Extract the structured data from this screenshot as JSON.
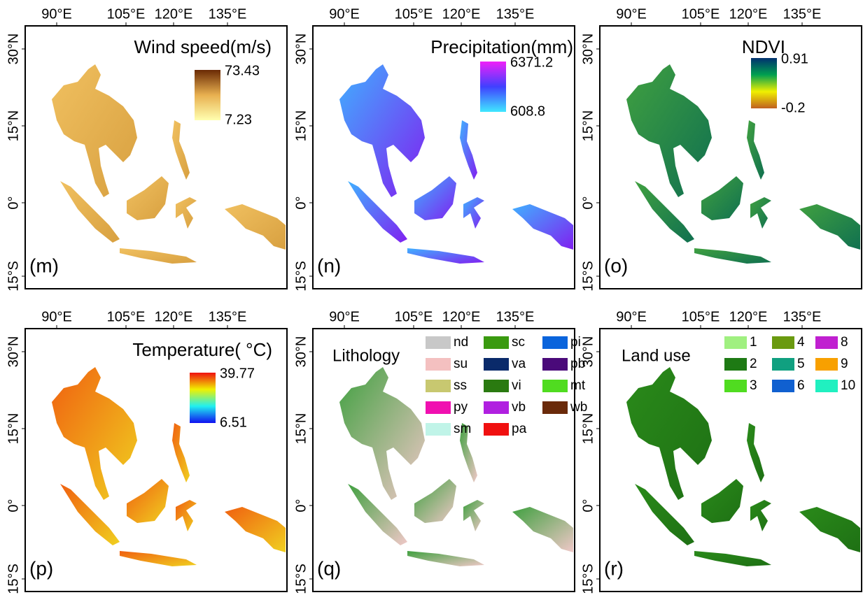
{
  "lon_ticks": [
    "90°E",
    "105°E",
    "120°E",
    "135°E"
  ],
  "lat_ticks": [
    "30°N",
    "15°N",
    "0°",
    "15°S"
  ],
  "panels": [
    {
      "label": "(m)",
      "title": "Wind speed(m/s)",
      "colorbar": {
        "max": 73.43,
        "min": 7.23,
        "colors": [
          "#ffffb0",
          "#e8b050",
          "#6a2a05"
        ]
      },
      "fill": [
        "#f0c060",
        "#d8a040"
      ]
    },
    {
      "label": "(n)",
      "title": "Precipitation(mm)",
      "colorbar": {
        "max": 6371.2,
        "min": 608.8,
        "colors": [
          "#40e8ff",
          "#4040ff",
          "#f020f8"
        ]
      },
      "fill": [
        "#40b0ff",
        "#8020f0"
      ]
    },
    {
      "label": "(o)",
      "title": "NDVI",
      "colorbar": {
        "max": 0.91,
        "min": -0.2,
        "colors": [
          "#c06020",
          "#f0f000",
          "#00a050",
          "#003070"
        ]
      },
      "fill": [
        "#40a040",
        "#107050"
      ]
    },
    {
      "label": "(p)",
      "title": "Temperature( °C)",
      "colorbar": {
        "max": 39.77,
        "min": 6.51,
        "colors": [
          "#1010f0",
          "#20f0f0",
          "#f0f000",
          "#f01010"
        ]
      },
      "fill": [
        "#f06010",
        "#f0d020"
      ]
    },
    {
      "label": "(q)",
      "title": "Lithology",
      "fill": [
        "#40a040",
        "#f0c8c8"
      ],
      "legend": [
        {
          "name": "nd",
          "color": "#c8c8c8"
        },
        {
          "name": "sc",
          "color": "#3a9a10"
        },
        {
          "name": "pi",
          "color": "#0a64dc"
        },
        {
          "name": "su",
          "color": "#f4c0c0"
        },
        {
          "name": "va",
          "color": "#0a2a6a"
        },
        {
          "name": "pb",
          "color": "#4a0a7a"
        },
        {
          "name": "ss",
          "color": "#c8c870"
        },
        {
          "name": "vi",
          "color": "#2a7a10"
        },
        {
          "name": "mt",
          "color": "#50dc20"
        },
        {
          "name": "py",
          "color": "#f010b0"
        },
        {
          "name": "vb",
          "color": "#b020e0"
        },
        {
          "name": "wb",
          "color": "#6a2a0a"
        },
        {
          "name": "sm",
          "color": "#c0f4e8"
        },
        {
          "name": "pa",
          "color": "#f01010"
        }
      ]
    },
    {
      "label": "(r)",
      "title": "Land use",
      "fill": [
        "#2a8a1a",
        "#1e7014"
      ],
      "legend": [
        {
          "name": "1",
          "color": "#a0f080"
        },
        {
          "name": "4",
          "color": "#6a9a10"
        },
        {
          "name": "8",
          "color": "#c020d0"
        },
        {
          "name": "2",
          "color": "#1e7a14"
        },
        {
          "name": "5",
          "color": "#10a080"
        },
        {
          "name": "9",
          "color": "#f8a000"
        },
        {
          "name": "3",
          "color": "#50dc20"
        },
        {
          "name": "6",
          "color": "#1060d0"
        },
        {
          "name": "10",
          "color": "#20f0c0"
        }
      ]
    }
  ]
}
